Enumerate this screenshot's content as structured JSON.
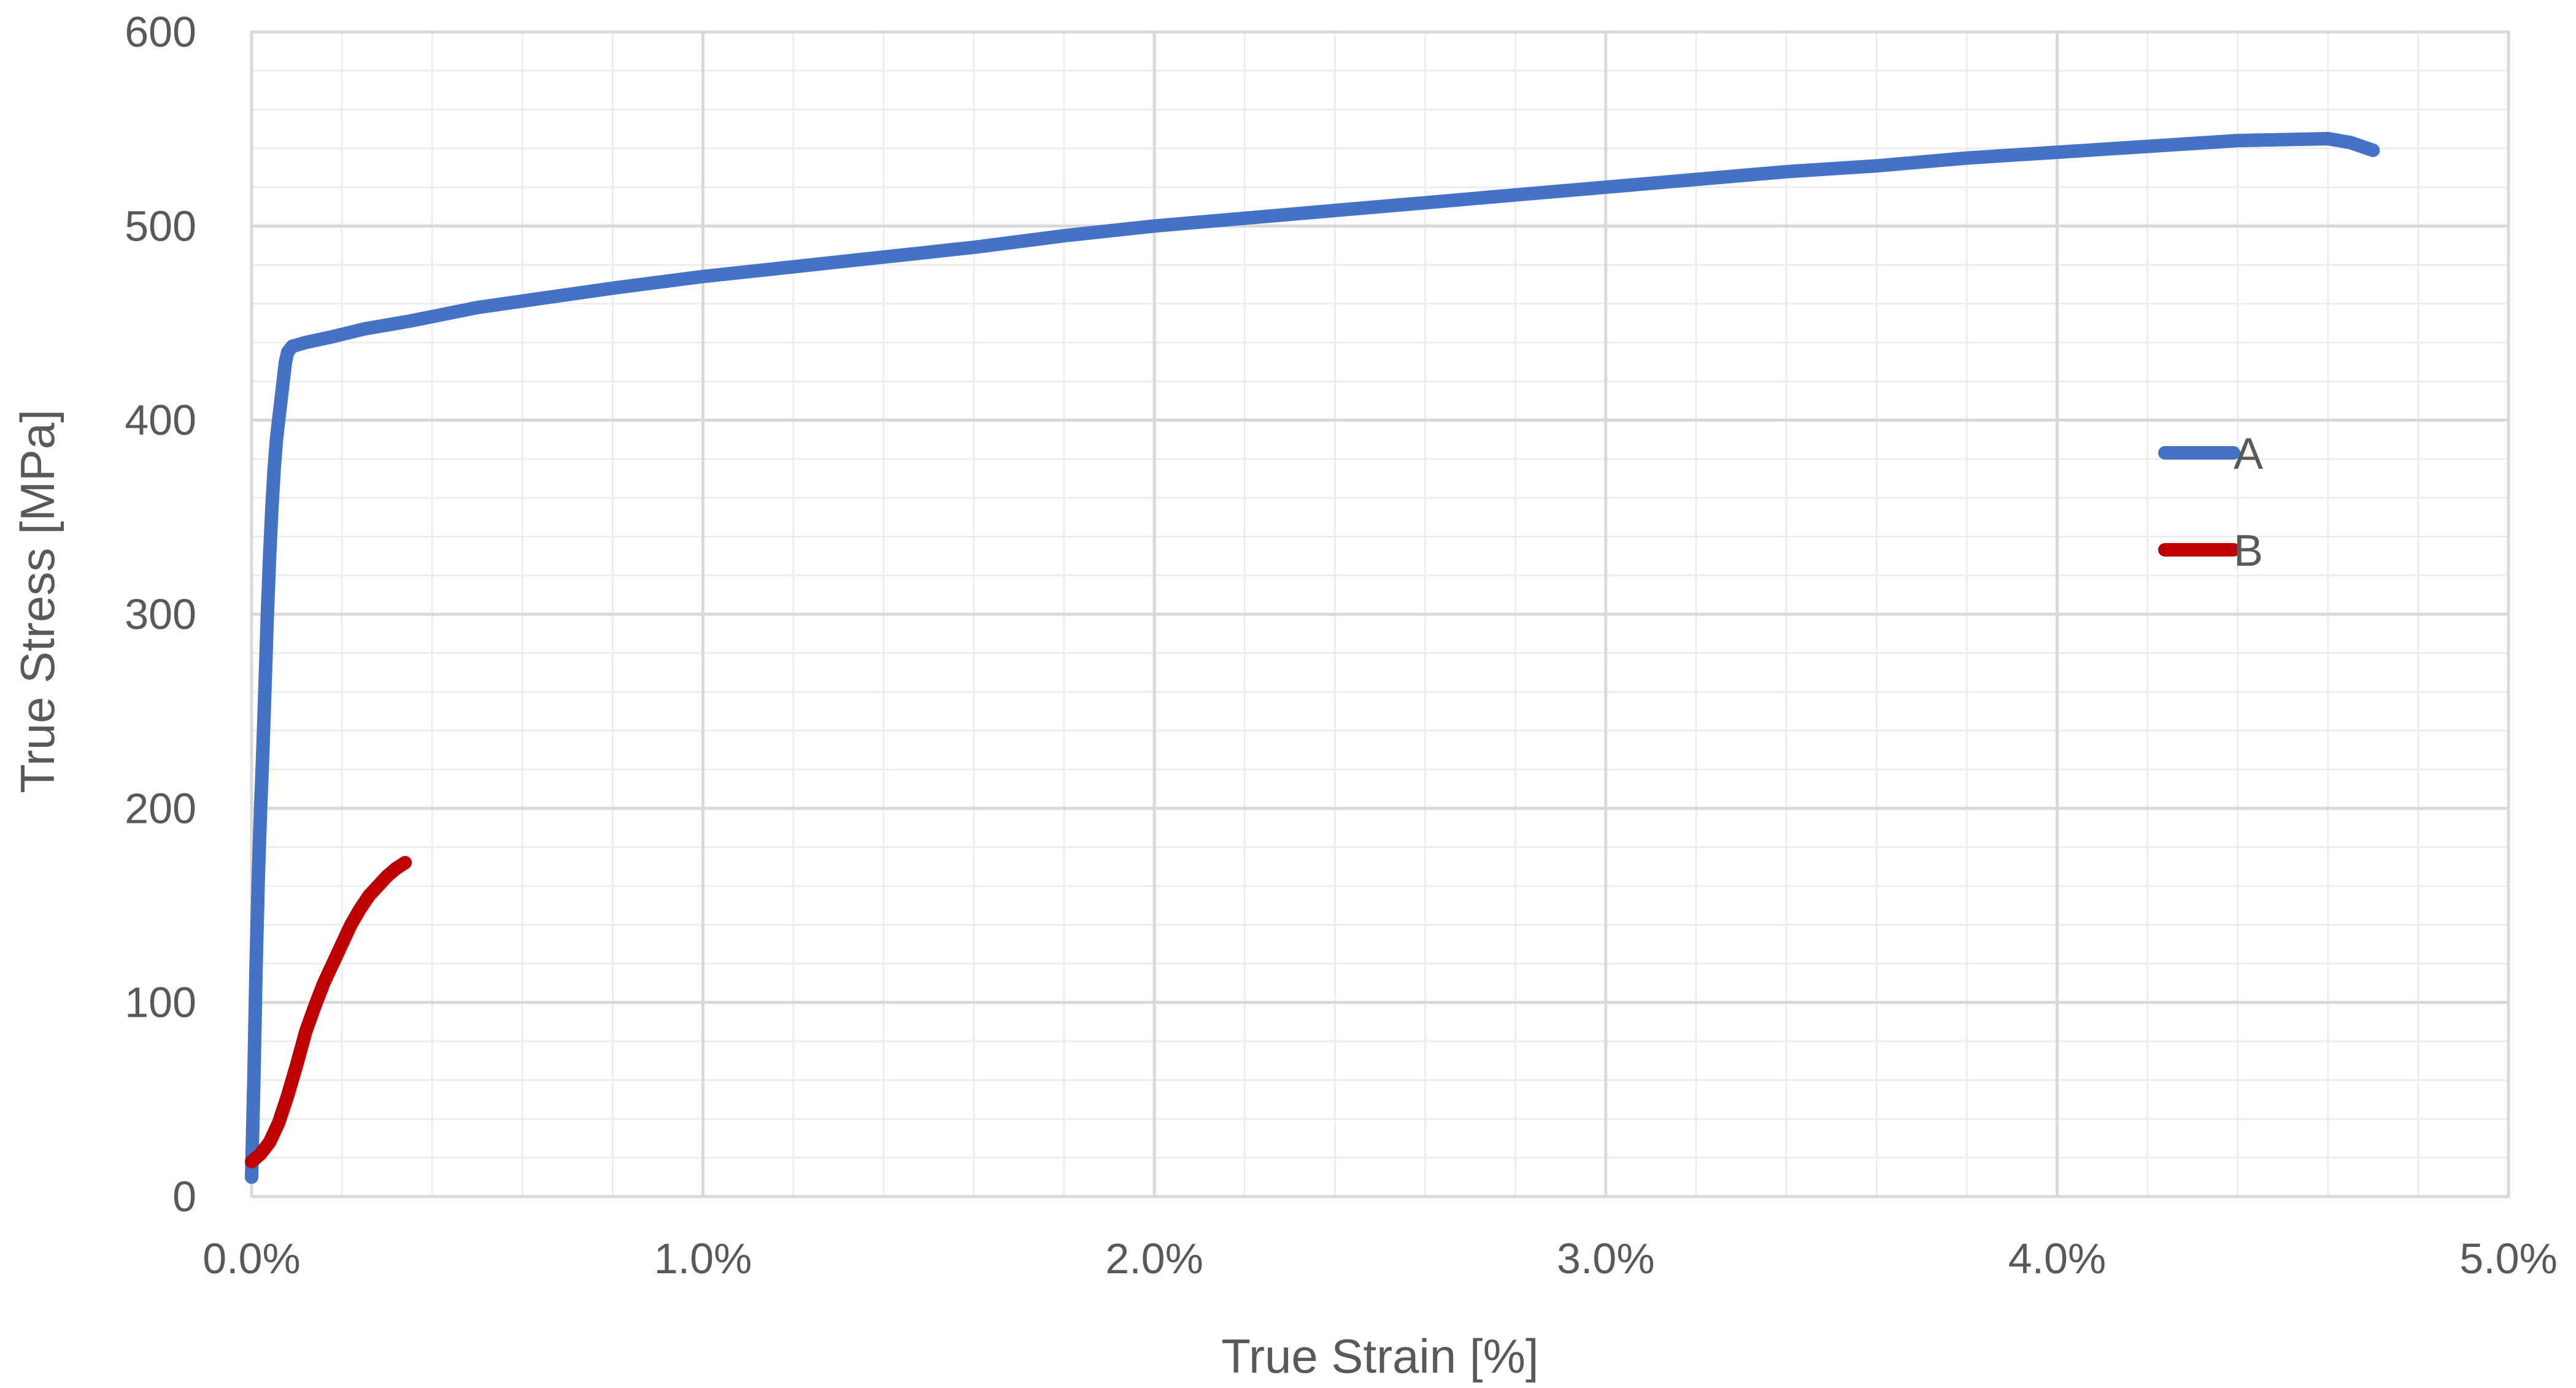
{
  "chart_data": {
    "type": "line",
    "title": "",
    "xlabel": "True Strain [%]",
    "ylabel": "True Stress [MPa]",
    "xlim": [
      0,
      5
    ],
    "ylim": [
      0,
      600
    ],
    "x_unit": "%",
    "x_ticks": [
      "0.0%",
      "1.0%",
      "2.0%",
      "3.0%",
      "4.0%",
      "5.0%"
    ],
    "y_ticks": [
      "0",
      "100",
      "200",
      "300",
      "400",
      "500",
      "600"
    ],
    "grid": true,
    "minor_grid": true,
    "legend_position": "right",
    "series": [
      {
        "name": "A",
        "color": "#4472C4",
        "points": [
          [
            0.0,
            10
          ],
          [
            0.005,
            60
          ],
          [
            0.01,
            120
          ],
          [
            0.015,
            165
          ],
          [
            0.02,
            200
          ],
          [
            0.025,
            230
          ],
          [
            0.03,
            265
          ],
          [
            0.035,
            300
          ],
          [
            0.04,
            330
          ],
          [
            0.045,
            355
          ],
          [
            0.05,
            375
          ],
          [
            0.055,
            390
          ],
          [
            0.06,
            400
          ],
          [
            0.065,
            410
          ],
          [
            0.07,
            420
          ],
          [
            0.075,
            430
          ],
          [
            0.08,
            435
          ],
          [
            0.09,
            438
          ],
          [
            0.12,
            440
          ],
          [
            0.18,
            443
          ],
          [
            0.25,
            447
          ],
          [
            0.35,
            451
          ],
          [
            0.5,
            458
          ],
          [
            0.65,
            463
          ],
          [
            0.8,
            468
          ],
          [
            1.0,
            474
          ],
          [
            1.2,
            479
          ],
          [
            1.4,
            484
          ],
          [
            1.6,
            489
          ],
          [
            1.8,
            495
          ],
          [
            2.0,
            500
          ],
          [
            2.2,
            504
          ],
          [
            2.4,
            508
          ],
          [
            2.6,
            512
          ],
          [
            2.8,
            516
          ],
          [
            3.0,
            520
          ],
          [
            3.2,
            524
          ],
          [
            3.4,
            528
          ],
          [
            3.6,
            531
          ],
          [
            3.8,
            535
          ],
          [
            4.0,
            538
          ],
          [
            4.2,
            541
          ],
          [
            4.4,
            544
          ],
          [
            4.6,
            545
          ],
          [
            4.65,
            543
          ],
          [
            4.7,
            539
          ]
        ]
      },
      {
        "name": "B",
        "color": "#C00000",
        "points": [
          [
            0.0,
            18
          ],
          [
            0.02,
            22
          ],
          [
            0.04,
            28
          ],
          [
            0.06,
            38
          ],
          [
            0.08,
            52
          ],
          [
            0.1,
            68
          ],
          [
            0.12,
            85
          ],
          [
            0.14,
            98
          ],
          [
            0.16,
            110
          ],
          [
            0.18,
            120
          ],
          [
            0.2,
            130
          ],
          [
            0.22,
            140
          ],
          [
            0.24,
            148
          ],
          [
            0.26,
            155
          ],
          [
            0.28,
            160
          ],
          [
            0.3,
            165
          ],
          [
            0.32,
            169
          ],
          [
            0.34,
            172
          ]
        ]
      }
    ]
  }
}
